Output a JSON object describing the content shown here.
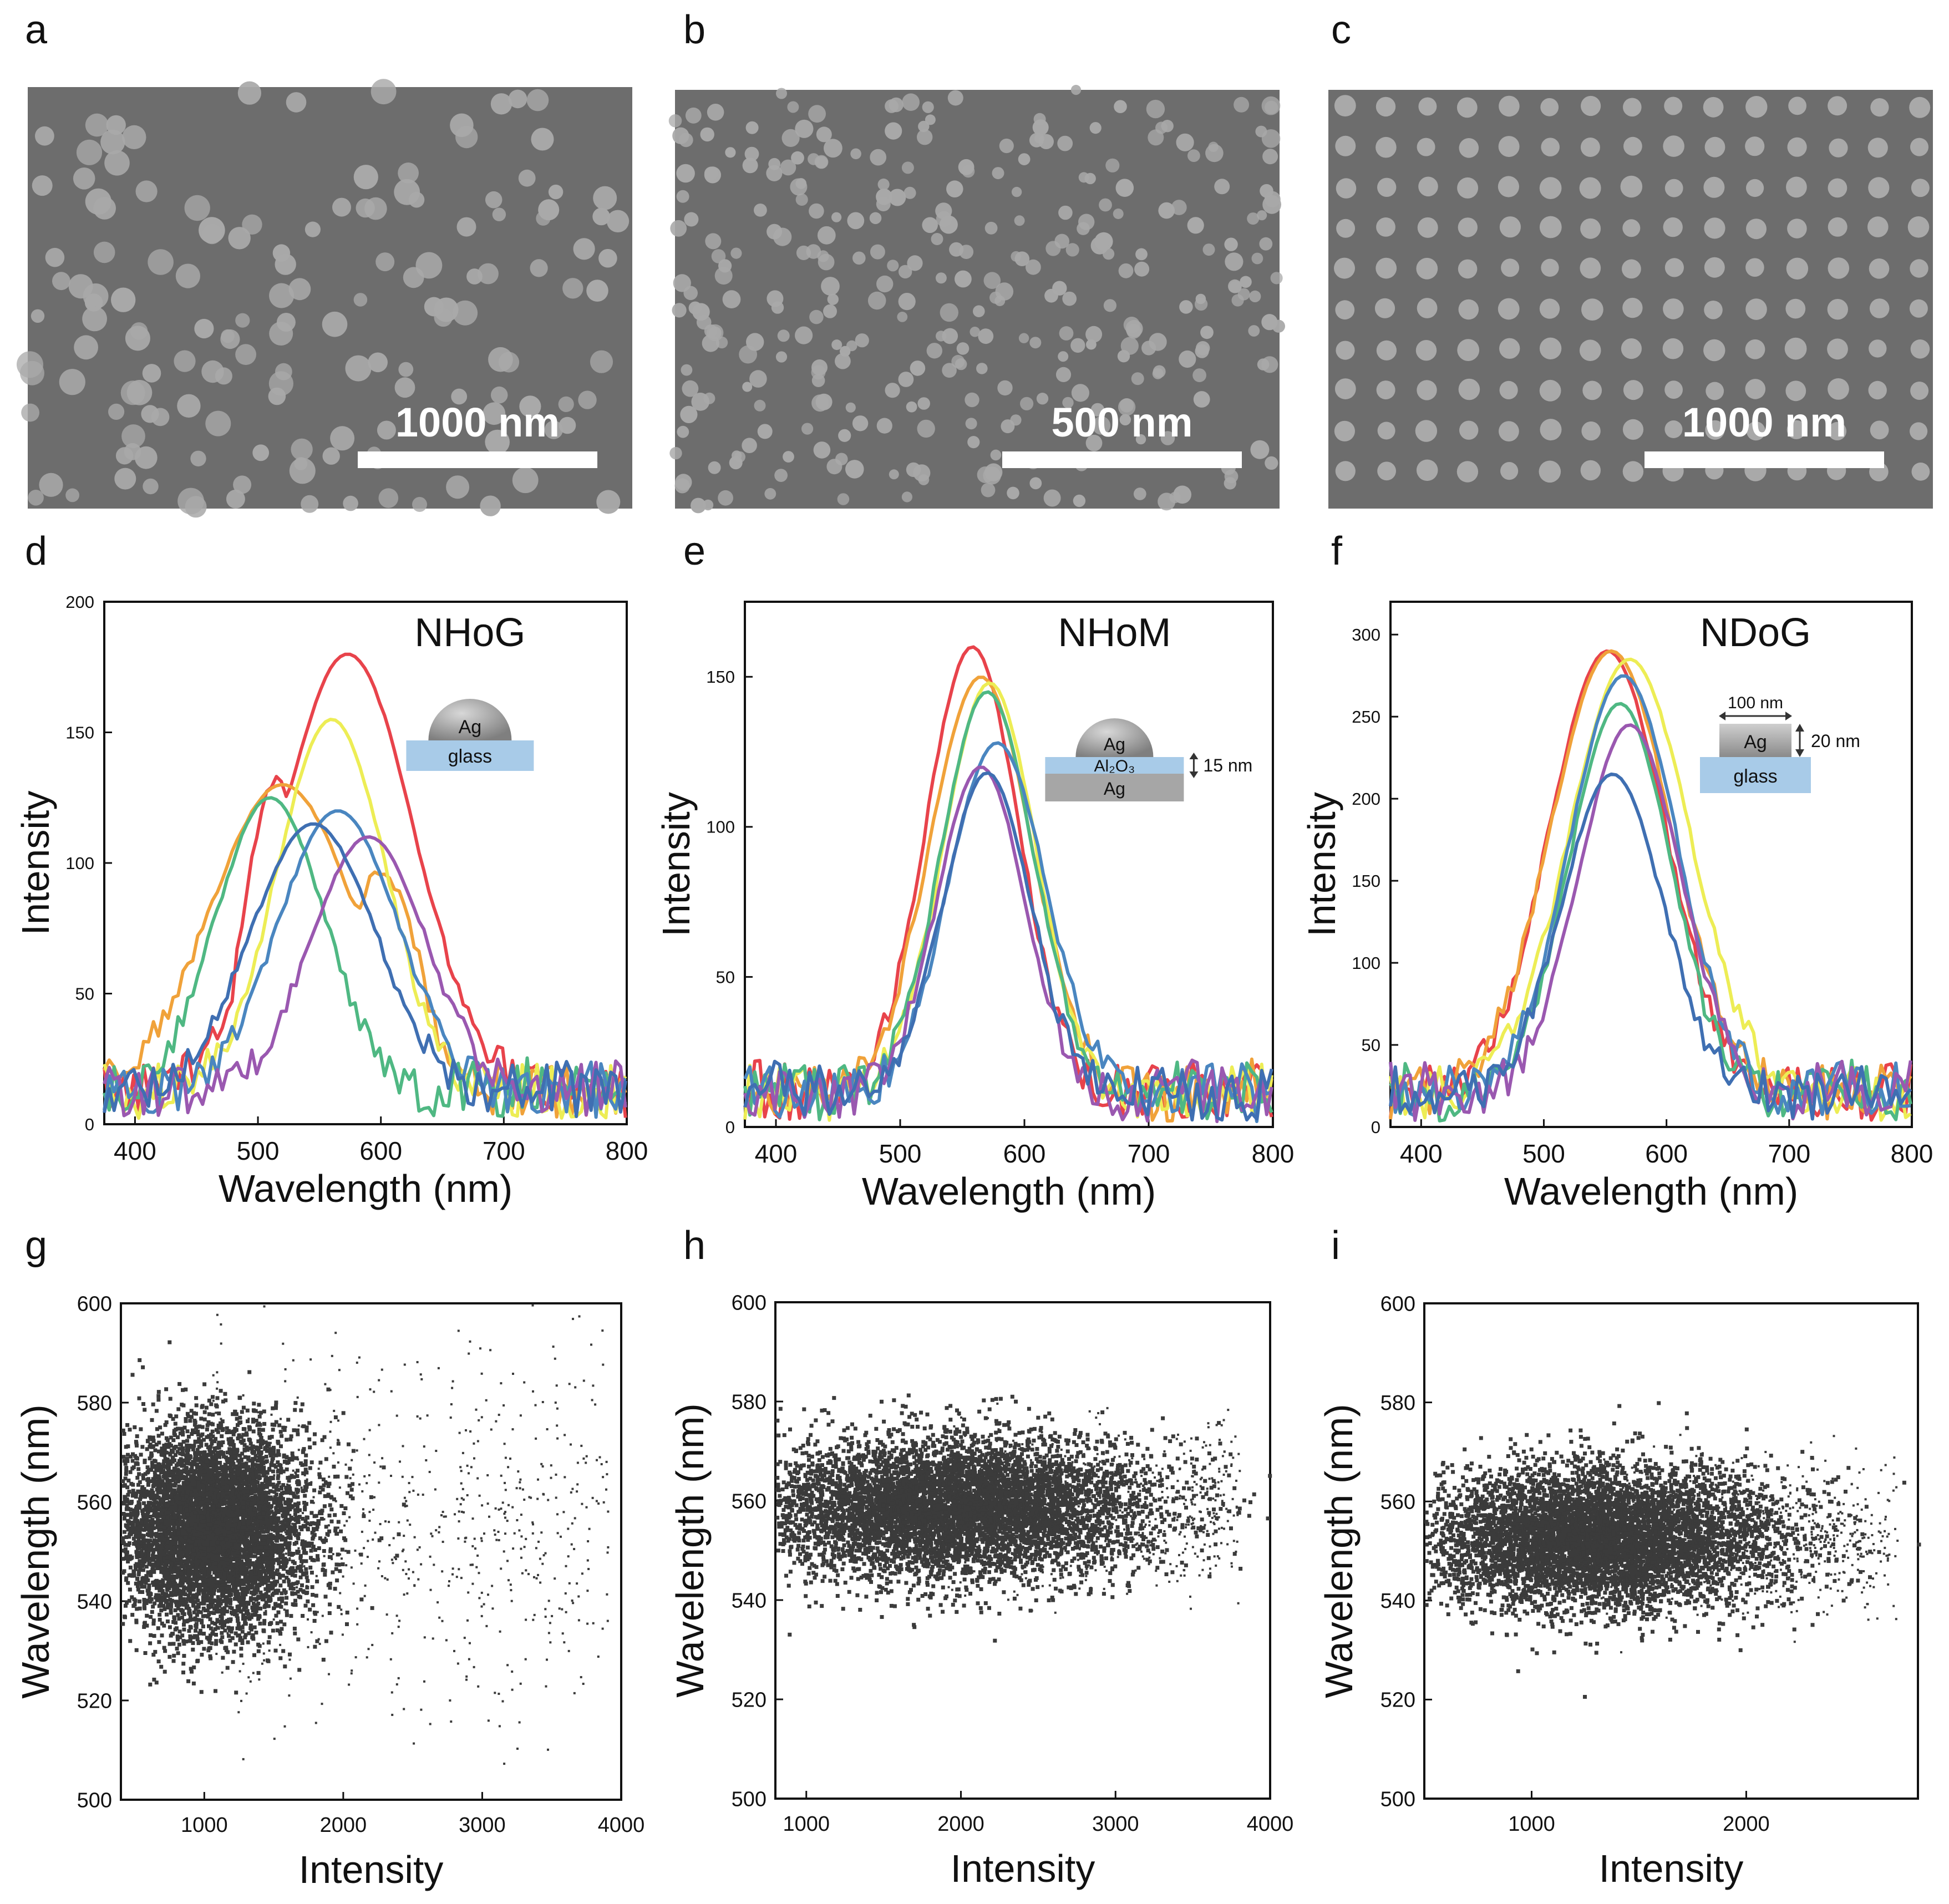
{
  "panel_labels": {
    "a": "a",
    "b": "b",
    "c": "c",
    "d": "d",
    "e": "e",
    "f": "f",
    "g": "g",
    "h": "h",
    "i": "i"
  },
  "sem": [
    {
      "id": "a",
      "scale_bar": "1000 nm",
      "pattern": "random"
    },
    {
      "id": "b",
      "scale_bar": "500 nm",
      "pattern": "dense-random"
    },
    {
      "id": "c",
      "scale_bar": "1000 nm",
      "pattern": "square-array"
    }
  ],
  "colors": {
    "sem_bg": "#6d6d6d",
    "particle": "#a9a9a9",
    "scatter": "#3b3b3b",
    "glass": "#a8cbe8",
    "ag_dome": "#9a9a9a",
    "ag_film": "#a6a6a6",
    "series": [
      "#e8434b",
      "#f0a23a",
      "#eded55",
      "#4fb883",
      "#4a86c0",
      "#9a58b0",
      "#3f6fb2"
    ]
  },
  "chart_data": [
    {
      "id": "d",
      "type": "line",
      "title": "NHoG",
      "xlabel": "Wavelength (nm)",
      "ylabel": "Intensity",
      "xlim": [
        375,
        800
      ],
      "ylim": [
        0,
        200
      ],
      "xticks": [
        400,
        500,
        600,
        700,
        800
      ],
      "yticks": [
        0,
        50,
        100,
        150,
        200
      ],
      "inset": {
        "type": "hemisphere",
        "top": "Ag",
        "bottom": "glass"
      },
      "series": [
        {
          "name": "red",
          "peak": 573,
          "amp": 180,
          "w": 55,
          "shoulder": [
            515,
            130,
            25
          ]
        },
        {
          "name": "orange",
          "peak": 520,
          "amp": 130,
          "w": 60,
          "shoulder": [
            600,
            95,
            30
          ]
        },
        {
          "name": "yellow",
          "peak": 560,
          "amp": 155,
          "w": 45
        },
        {
          "name": "green",
          "peak": 510,
          "amp": 125,
          "w": 45
        },
        {
          "name": "blue",
          "peak": 565,
          "amp": 120,
          "w": 50
        },
        {
          "name": "purple",
          "peak": 590,
          "amp": 110,
          "w": 48
        },
        {
          "name": "darkblue",
          "peak": 545,
          "amp": 115,
          "w": 52
        }
      ]
    },
    {
      "id": "e",
      "type": "line",
      "title": "NHoM",
      "xlabel": "Wavelength (nm)",
      "ylabel": "Intensity",
      "xlim": [
        375,
        800
      ],
      "ylim": [
        0,
        175
      ],
      "xticks": [
        400,
        500,
        600,
        700,
        800
      ],
      "yticks": [
        0,
        50,
        100,
        150
      ],
      "inset": {
        "type": "mim",
        "top": "Ag",
        "spacer": "Al₂O₃",
        "bottom": "Ag",
        "thickness": "15 nm"
      },
      "series": [
        {
          "name": "red",
          "peak": 558,
          "amp": 160,
          "w": 38
        },
        {
          "name": "orange",
          "peak": 565,
          "amp": 150,
          "w": 42
        },
        {
          "name": "yellow",
          "peak": 572,
          "amp": 148,
          "w": 38
        },
        {
          "name": "green",
          "peak": 570,
          "amp": 145,
          "w": 38
        },
        {
          "name": "blue",
          "peak": 578,
          "amp": 128,
          "w": 40
        },
        {
          "name": "purple",
          "peak": 565,
          "amp": 120,
          "w": 36
        },
        {
          "name": "darkblue",
          "peak": 570,
          "amp": 118,
          "w": 36
        }
      ]
    },
    {
      "id": "f",
      "type": "line",
      "title": "NDoG",
      "xlabel": "Wavelength (nm)",
      "ylabel": "Intensity",
      "xlim": [
        375,
        800
      ],
      "ylim": [
        0,
        320
      ],
      "xticks": [
        400,
        500,
        600,
        700,
        800
      ],
      "yticks": [
        0,
        50,
        100,
        150,
        200,
        250,
        300
      ],
      "inset": {
        "type": "disk",
        "top": "Ag",
        "bottom": "glass",
        "diameter": "100 nm",
        "thickness": "20 nm"
      },
      "series": [
        {
          "name": "red",
          "peak": 552,
          "amp": 290,
          "w": 48
        },
        {
          "name": "orange",
          "peak": 555,
          "amp": 290,
          "w": 50
        },
        {
          "name": "yellow",
          "peak": 570,
          "amp": 285,
          "w": 50
        },
        {
          "name": "green",
          "peak": 562,
          "amp": 258,
          "w": 42
        },
        {
          "name": "blue",
          "peak": 565,
          "amp": 275,
          "w": 45
        },
        {
          "name": "purple",
          "peak": 570,
          "amp": 245,
          "w": 42
        },
        {
          "name": "darkblue",
          "peak": 556,
          "amp": 215,
          "w": 42
        }
      ]
    },
    {
      "id": "g",
      "type": "scatter",
      "xlabel": "Intensity",
      "ylabel": "Wavelength (nm)",
      "xlim": [
        400,
        4000
      ],
      "ylim": [
        500,
        600
      ],
      "xticks": [
        1000,
        2000,
        3000,
        4000
      ],
      "yticks": [
        500,
        520,
        540,
        560,
        580,
        600
      ],
      "cloud": {
        "cx": 1050,
        "cy": 555,
        "sx": 350,
        "sy": 10,
        "tail_to": 3900,
        "tail_sy": 18
      }
    },
    {
      "id": "h",
      "type": "scatter",
      "xlabel": "Intensity",
      "ylabel": "Wavelength (nm)",
      "xlim": [
        800,
        4000
      ],
      "ylim": [
        500,
        600
      ],
      "xticks": [
        1000,
        2000,
        3000,
        4000
      ],
      "yticks": [
        500,
        520,
        540,
        560,
        580,
        600
      ],
      "cloud": {
        "cx": 1900,
        "cy": 559,
        "sx": 650,
        "sy": 7,
        "tail_to": 3800,
        "tail_sy": 8
      }
    },
    {
      "id": "i",
      "type": "scatter",
      "xlabel": "Intensity",
      "ylabel": "Wavelength (nm)",
      "xlim": [
        500,
        2800
      ],
      "ylim": [
        500,
        600
      ],
      "xticks": [
        1000,
        2000
      ],
      "yticks": [
        500,
        520,
        540,
        560,
        580,
        600
      ],
      "cloud": {
        "cx": 1300,
        "cy": 553,
        "sx": 420,
        "sy": 7,
        "tail_to": 2700,
        "tail_sy": 7
      }
    }
  ]
}
